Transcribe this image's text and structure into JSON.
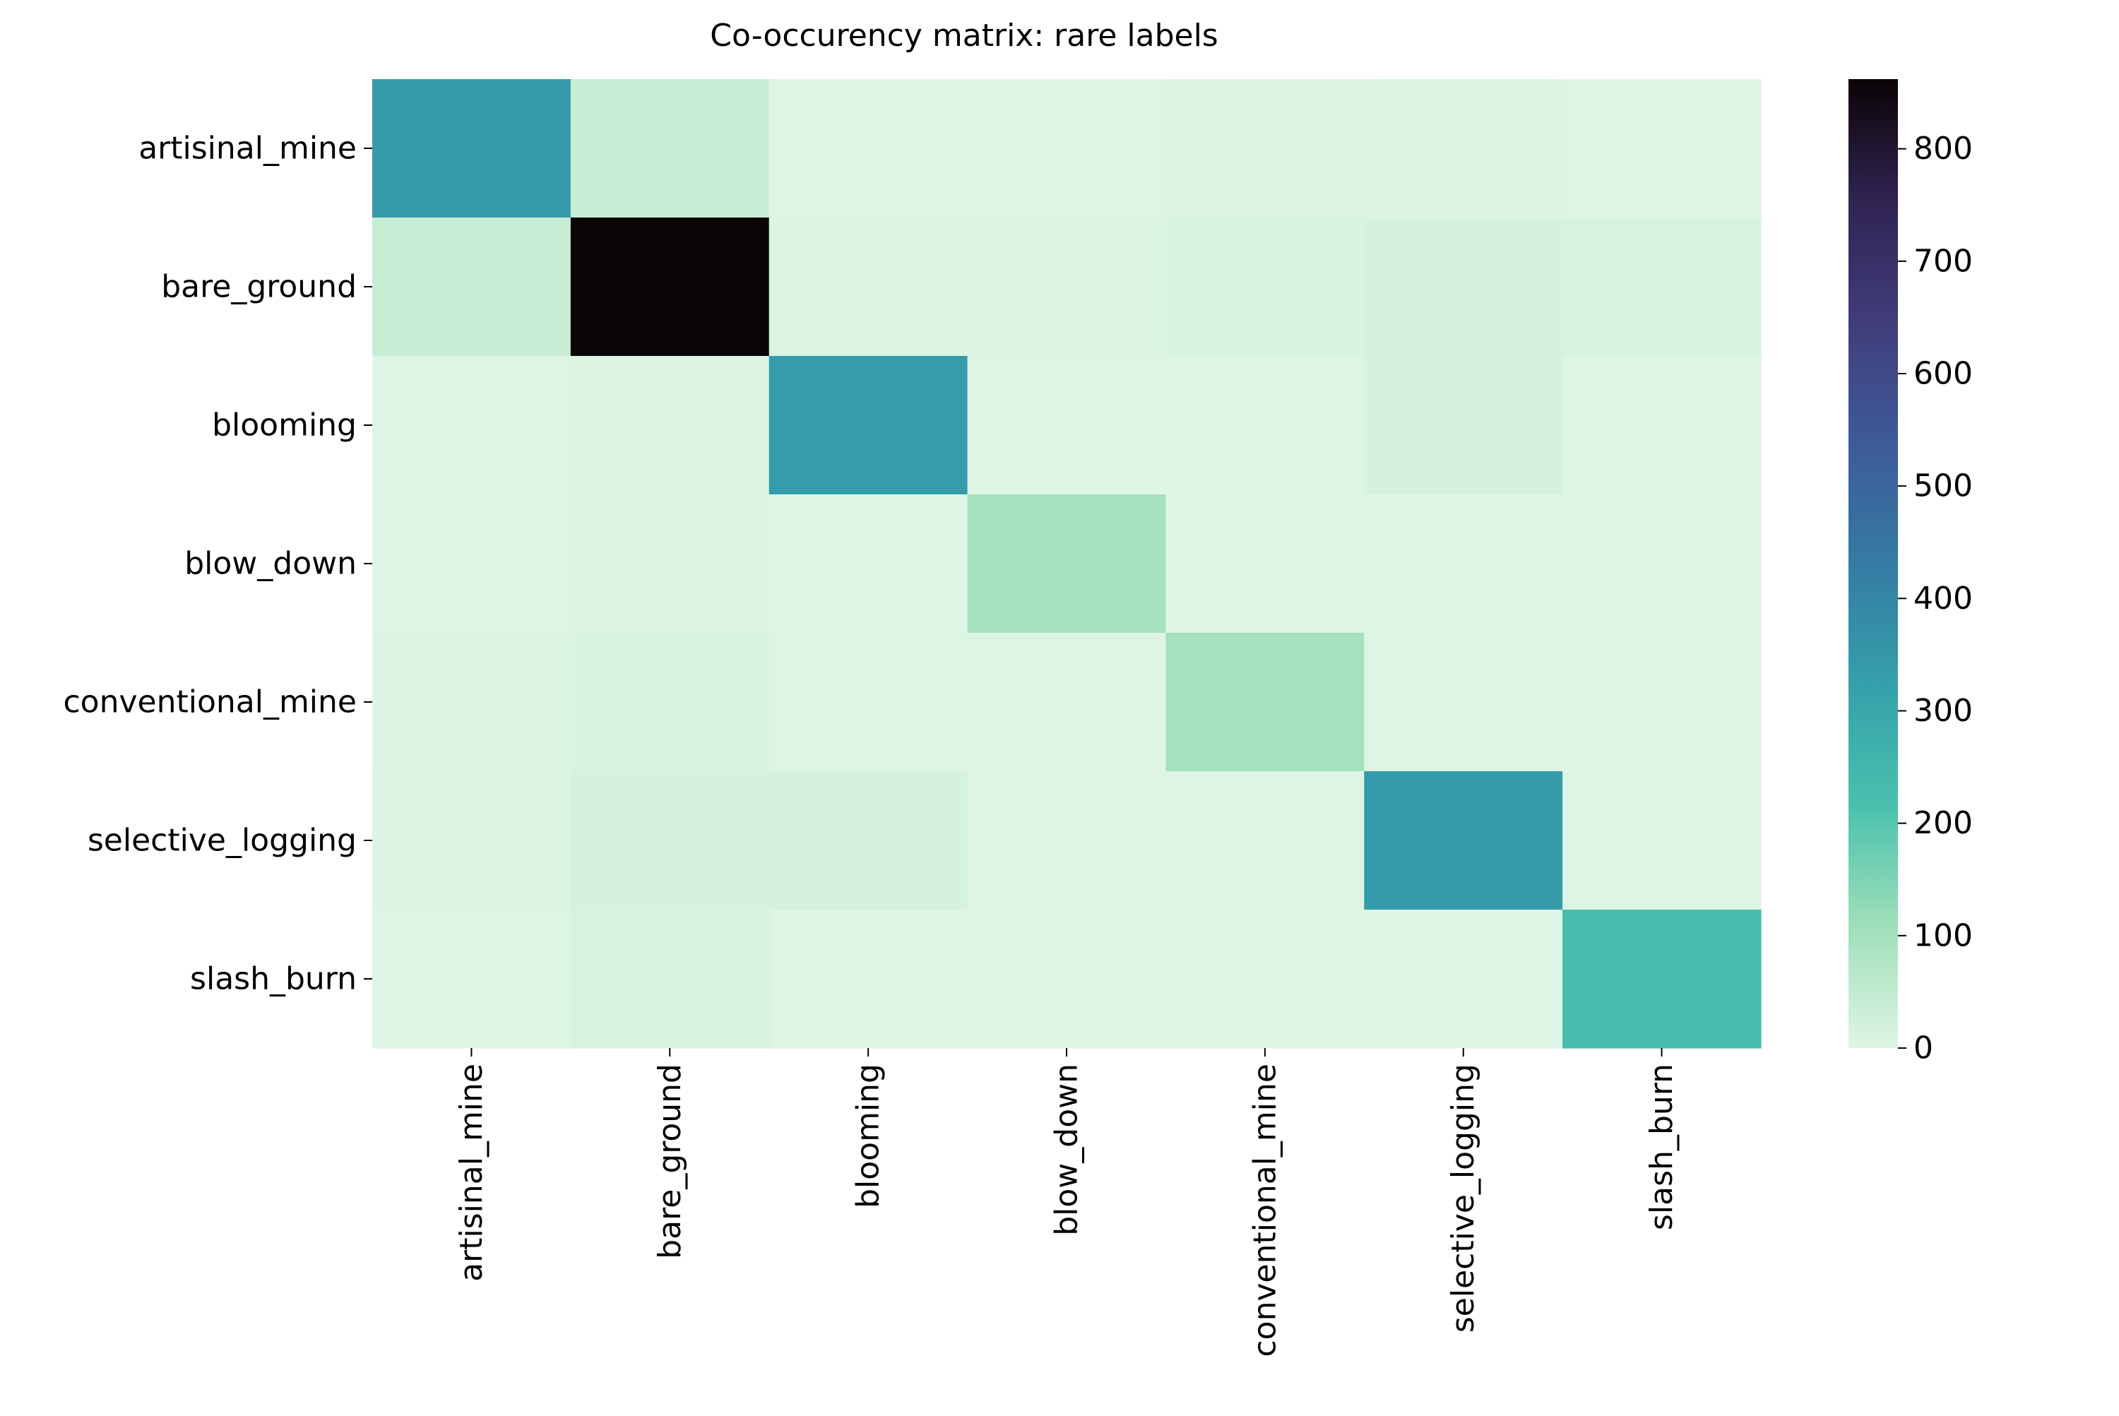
{
  "chart_data": {
    "type": "heatmap",
    "title": "Co-occurency matrix: rare labels",
    "xlabel": "",
    "ylabel": "",
    "row_labels": [
      "artisinal_mine",
      "bare_ground",
      "blooming",
      "blow_down",
      "conventional_mine",
      "selective_logging",
      "slash_burn"
    ],
    "col_labels": [
      "artisinal_mine",
      "bare_ground",
      "blooming",
      "blow_down",
      "conventional_mine",
      "selective_logging",
      "slash_burn"
    ],
    "values": [
      [
        339,
        40,
        0,
        0,
        4,
        6,
        1
      ],
      [
        40,
        862,
        3,
        6,
        10,
        16,
        12
      ],
      [
        0,
        3,
        332,
        2,
        2,
        15,
        2
      ],
      [
        0,
        6,
        2,
        98,
        0,
        0,
        0
      ],
      [
        4,
        10,
        2,
        0,
        100,
        0,
        0
      ],
      [
        6,
        16,
        15,
        0,
        0,
        340,
        2
      ],
      [
        1,
        12,
        2,
        0,
        0,
        2,
        227
      ]
    ],
    "colorbar": {
      "min": 0,
      "max": 862,
      "ticks": [
        0,
        100,
        200,
        300,
        400,
        500,
        600,
        700,
        800
      ],
      "colormap": "mako_r",
      "colors": [
        "#def5e5",
        "#a0dfb9",
        "#49c1ad",
        "#35a0ab",
        "#357ba3",
        "#3e5a99",
        "#413d7b",
        "#2f2351",
        "#0b0405"
      ]
    },
    "grid": false,
    "legend": "colorbar-right"
  }
}
